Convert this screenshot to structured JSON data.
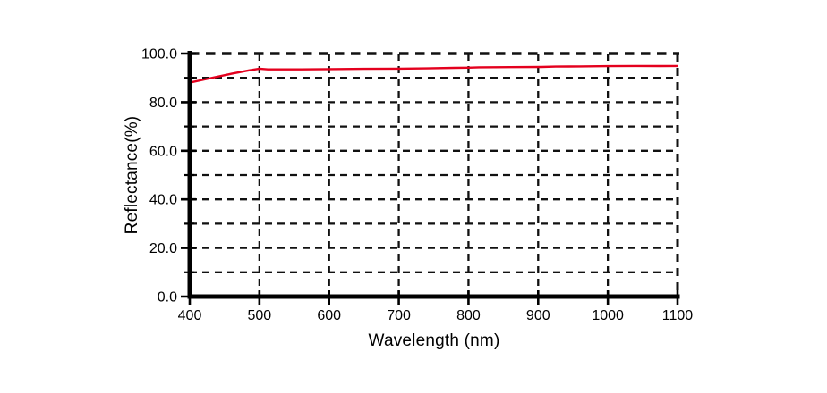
{
  "chart_data": {
    "type": "line",
    "title": "",
    "xlabel": "Wavelength (nm)",
    "ylabel": "Reflectance(%)",
    "xlim": [
      400,
      1100
    ],
    "ylim": [
      0,
      100
    ],
    "x_ticks": [
      400,
      500,
      600,
      700,
      800,
      900,
      1000,
      1100
    ],
    "x_tick_labels": [
      "400",
      "500",
      "600",
      "700",
      "800",
      "900",
      "1000",
      "1100"
    ],
    "y_ticks_major": [
      0,
      20,
      40,
      60,
      80,
      100
    ],
    "y_tick_labels": [
      "0.0",
      "20.0",
      "40.0",
      "60.0",
      "80.0",
      "100.0"
    ],
    "y_ticks_minor": [
      10,
      30,
      50,
      70,
      90
    ],
    "grid": {
      "style": "dashed",
      "x_interval_nm": 100,
      "y_interval_pct": 10,
      "color": "#111111"
    },
    "legend": null,
    "series": [
      {
        "name": "Reflectance",
        "color": "#e4001e",
        "x": [
          400,
          430,
          460,
          485,
          500,
          512,
          560,
          600,
          650,
          700,
          740,
          780,
          800,
          815,
          860,
          905,
          925,
          960,
          1000,
          1040,
          1075,
          1100
        ],
        "y": [
          88.0,
          89.9,
          91.7,
          93.1,
          93.8,
          93.5,
          93.5,
          93.6,
          93.7,
          93.8,
          93.9,
          94.1,
          94.2,
          94.35,
          94.4,
          94.5,
          94.65,
          94.7,
          94.8,
          94.9,
          94.85,
          94.9
        ]
      }
    ]
  },
  "colors": {
    "background": "#ffffff",
    "axis": "#000000",
    "grid": "#111111",
    "series_red": "#e4001e"
  }
}
